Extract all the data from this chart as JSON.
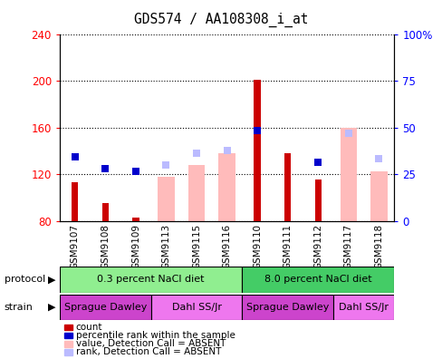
{
  "title": "GDS574 / AA108308_i_at",
  "samples": [
    "GSM9107",
    "GSM9108",
    "GSM9109",
    "GSM9113",
    "GSM9115",
    "GSM9116",
    "GSM9110",
    "GSM9111",
    "GSM9112",
    "GSM9117",
    "GSM9118"
  ],
  "count_values": [
    113,
    95,
    83,
    null,
    null,
    null,
    201,
    138,
    115,
    null,
    null
  ],
  "rank_values": [
    135,
    125,
    122,
    null,
    null,
    null,
    157,
    null,
    130,
    null,
    null
  ],
  "absent_value": [
    null,
    null,
    null,
    118,
    128,
    138,
    null,
    null,
    null,
    160,
    122
  ],
  "absent_rank": [
    null,
    null,
    null,
    128,
    138,
    140,
    null,
    null,
    null,
    155,
    133
  ],
  "ylim_left": [
    80,
    240
  ],
  "ylim_right": [
    0,
    100
  ],
  "yticks_left": [
    80,
    120,
    160,
    200,
    240
  ],
  "yticks_right": [
    0,
    25,
    50,
    75,
    100
  ],
  "ytick_labels_right": [
    "0",
    "25",
    "50",
    "75",
    "100%"
  ],
  "protocol_groups": [
    {
      "label": "0.3 percent NaCl diet",
      "start": 0,
      "end": 5,
      "color": "#90EE90"
    },
    {
      "label": "8.0 percent NaCl diet",
      "start": 6,
      "end": 10,
      "color": "#44CC66"
    }
  ],
  "strain_groups": [
    {
      "label": "Sprague Dawley",
      "start": 0,
      "end": 2,
      "color": "#CC44CC"
    },
    {
      "label": "Dahl SS/Jr",
      "start": 3,
      "end": 5,
      "color": "#EE77EE"
    },
    {
      "label": "Sprague Dawley",
      "start": 6,
      "end": 8,
      "color": "#CC44CC"
    },
    {
      "label": "Dahl SS/Jr",
      "start": 9,
      "end": 10,
      "color": "#EE77EE"
    }
  ],
  "count_color": "#CC0000",
  "rank_color": "#0000CC",
  "absent_value_color": "#FFBBBB",
  "absent_rank_color": "#BBBBFF",
  "bg_color": "#ffffff",
  "legend_items": [
    {
      "label": "count",
      "color": "#CC0000"
    },
    {
      "label": "percentile rank within the sample",
      "color": "#0000CC"
    },
    {
      "label": "value, Detection Call = ABSENT",
      "color": "#FFBBBB"
    },
    {
      "label": "rank, Detection Call = ABSENT",
      "color": "#BBBBFF"
    }
  ]
}
